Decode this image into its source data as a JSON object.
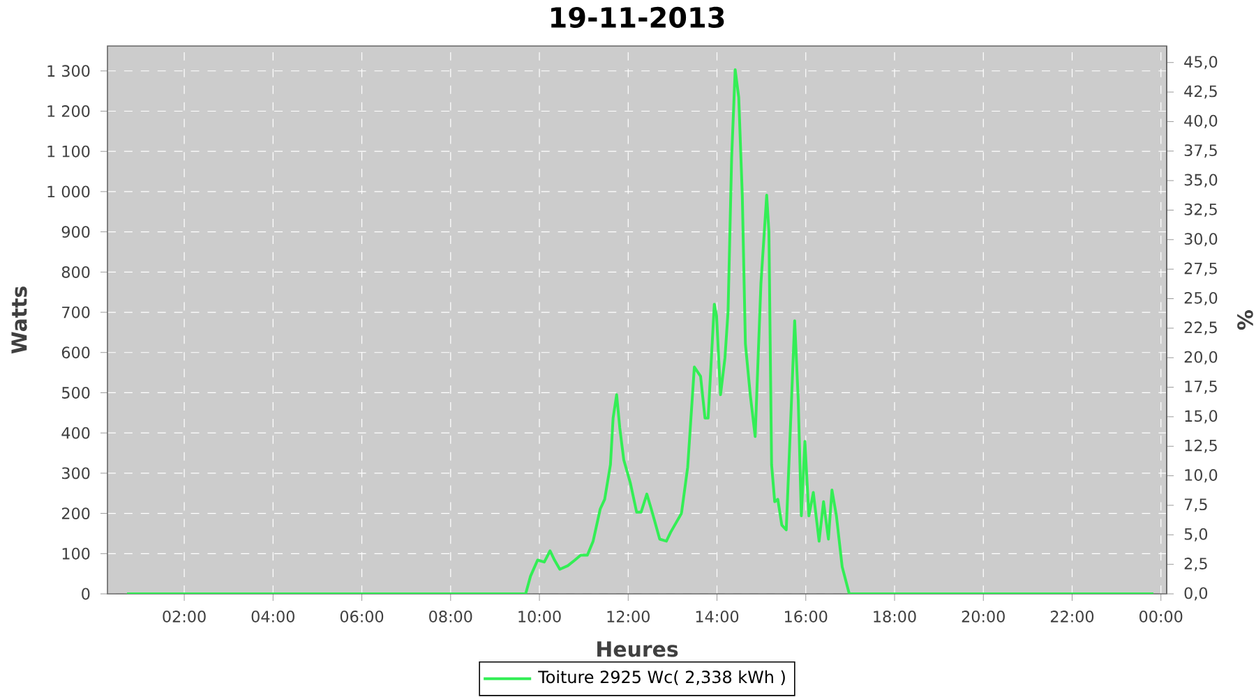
{
  "chart_data": {
    "type": "line",
    "title": "19-11-2013",
    "xlabel": "Heures",
    "ylabel": "Watts",
    "y2label": "%",
    "x": [
      0.71,
      9.69,
      9.8,
      9.96,
      10.11,
      10.24,
      10.34,
      10.46,
      10.64,
      10.8,
      10.93,
      11.08,
      11.21,
      11.37,
      11.47,
      11.6,
      11.66,
      11.74,
      11.81,
      11.9,
      12.05,
      12.19,
      12.29,
      12.42,
      12.52,
      12.71,
      12.86,
      12.96,
      13.2,
      13.34,
      13.49,
      13.63,
      13.73,
      13.8,
      13.94,
      13.99,
      14.08,
      14.18,
      14.25,
      14.33,
      14.41,
      14.49,
      14.57,
      14.64,
      14.75,
      14.86,
      14.99,
      15.12,
      15.17,
      15.23,
      15.3,
      15.37,
      15.46,
      15.56,
      15.65,
      15.75,
      15.83,
      15.9,
      15.98,
      16.07,
      16.17,
      16.3,
      16.4,
      16.51,
      16.59,
      16.69,
      16.82,
      16.98,
      23.83
    ],
    "series": [
      {
        "name": "Toiture 2925 Wc( 2,338 kWh )",
        "color": "#33ee55",
        "values": [
          0,
          0,
          44,
          84,
          79,
          107,
          84,
          61,
          70,
          84,
          96,
          96,
          131,
          211,
          235,
          321,
          437,
          495,
          413,
          333,
          275,
          203,
          203,
          248,
          211,
          136,
          131,
          154,
          200,
          315,
          564,
          541,
          437,
          437,
          720,
          691,
          495,
          587,
          703,
          1084,
          1303,
          1234,
          991,
          622,
          495,
          391,
          772,
          991,
          899,
          321,
          229,
          235,
          171,
          159,
          402,
          679,
          483,
          194,
          379,
          194,
          252,
          131,
          229,
          136,
          258,
          194,
          67,
          0,
          0
        ]
      }
    ],
    "xlim": [
      0.27,
      24.13
    ],
    "ylim": [
      0,
      1362
    ],
    "y2lim": [
      0,
      46.4
    ],
    "xticks": [
      {
        "value": 2,
        "label": "02:00"
      },
      {
        "value": 4,
        "label": "04:00"
      },
      {
        "value": 6,
        "label": "06:00"
      },
      {
        "value": 8,
        "label": "08:00"
      },
      {
        "value": 10,
        "label": "10:00"
      },
      {
        "value": 12,
        "label": "12:00"
      },
      {
        "value": 14,
        "label": "14:00"
      },
      {
        "value": 16,
        "label": "16:00"
      },
      {
        "value": 18,
        "label": "18:00"
      },
      {
        "value": 20,
        "label": "20:00"
      },
      {
        "value": 22,
        "label": "22:00"
      },
      {
        "value": 24,
        "label": "00:00"
      }
    ],
    "yticks": [
      0,
      100,
      200,
      300,
      400,
      500,
      600,
      700,
      800,
      900,
      {
        "value": 1000,
        "label": "1 000"
      },
      {
        "value": 1100,
        "label": "1 100"
      },
      {
        "value": 1200,
        "label": "1 200"
      },
      {
        "value": 1300,
        "label": "1 300"
      }
    ],
    "y2ticks": [
      {
        "value": 0,
        "label": "0,0"
      },
      {
        "value": 2.5,
        "label": "2,5"
      },
      {
        "value": 5,
        "label": "5,0"
      },
      {
        "value": 7.5,
        "label": "7,5"
      },
      {
        "value": 10,
        "label": "10,0"
      },
      {
        "value": 12.5,
        "label": "12,5"
      },
      {
        "value": 15,
        "label": "15,0"
      },
      {
        "value": 17.5,
        "label": "17,5"
      },
      {
        "value": 20,
        "label": "20,0"
      },
      {
        "value": 22.5,
        "label": "22,5"
      },
      {
        "value": 25,
        "label": "25,0"
      },
      {
        "value": 27.5,
        "label": "27,5"
      },
      {
        "value": 30,
        "label": "30,0"
      },
      {
        "value": 32.5,
        "label": "32,5"
      },
      {
        "value": 35,
        "label": "35,0"
      },
      {
        "value": 37.5,
        "label": "37,5"
      },
      {
        "value": 40,
        "label": "40,0"
      },
      {
        "value": 42.5,
        "label": "42,5"
      },
      {
        "value": 45,
        "label": "45,0"
      }
    ],
    "grid": true,
    "legend": "bottom",
    "marker": "none",
    "line_style": "solid"
  }
}
